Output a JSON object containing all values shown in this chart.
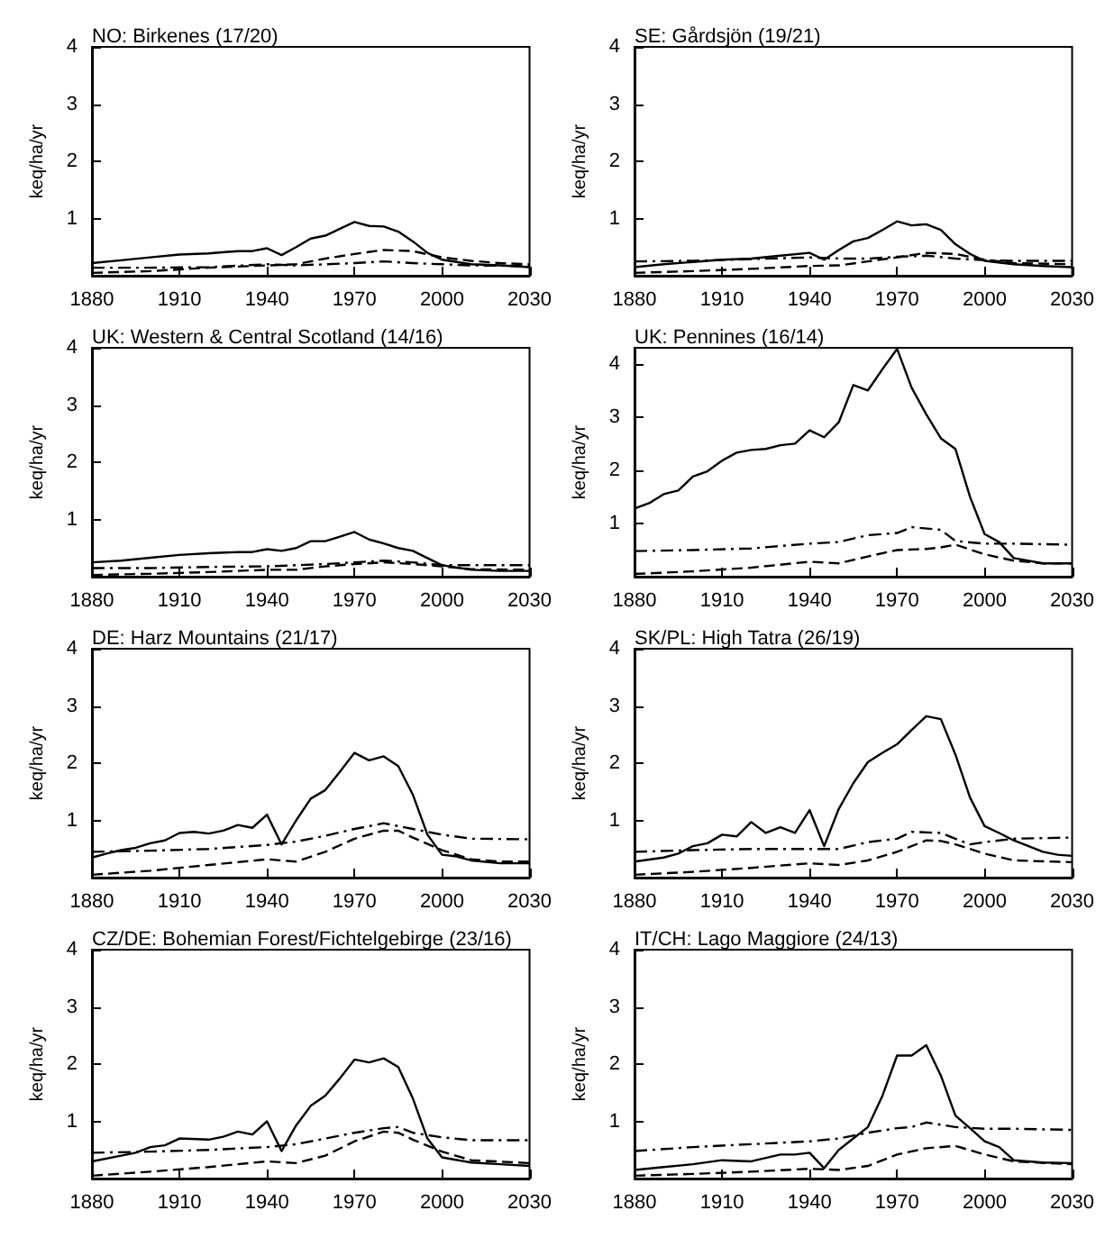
{
  "chart_data": [
    {
      "type": "line",
      "title": "NO: Birkenes (17/20)",
      "ylabel": "keq/ha/yr",
      "xlim": [
        1880,
        2030
      ],
      "xticks": [
        1880,
        1910,
        1940,
        1970,
        2000,
        2030
      ],
      "ylim": [
        0,
        4
      ],
      "yticks": [
        1,
        2,
        3,
        4
      ],
      "series": [
        {
          "color": "#000000",
          "line_style": "solid",
          "x": [
            1880,
            1890,
            1900,
            1910,
            1920,
            1930,
            1935,
            1940,
            1945,
            1950,
            1955,
            1960,
            1965,
            1970,
            1975,
            1980,
            1985,
            1990,
            1995,
            2000,
            2010,
            2020,
            2030
          ],
          "values": [
            0.22,
            0.27,
            0.32,
            0.37,
            0.39,
            0.43,
            0.43,
            0.48,
            0.36,
            0.5,
            0.65,
            0.7,
            0.82,
            0.94,
            0.87,
            0.86,
            0.77,
            0.6,
            0.4,
            0.28,
            0.2,
            0.18,
            0.15
          ]
        },
        {
          "color": "#000000",
          "line_style": "dashed",
          "x": [
            1880,
            1900,
            1920,
            1940,
            1950,
            1960,
            1970,
            1980,
            1990,
            2000,
            2010,
            2020,
            2030
          ],
          "values": [
            0.05,
            0.08,
            0.14,
            0.18,
            0.2,
            0.3,
            0.38,
            0.45,
            0.43,
            0.32,
            0.26,
            0.22,
            0.2
          ]
        },
        {
          "color": "#000000",
          "line_style": "dashdot",
          "x": [
            1880,
            1900,
            1920,
            1940,
            1950,
            1960,
            1970,
            1980,
            1990,
            2000,
            2010,
            2030
          ],
          "values": [
            0.14,
            0.14,
            0.15,
            0.2,
            0.18,
            0.2,
            0.22,
            0.25,
            0.22,
            0.2,
            0.18,
            0.17
          ]
        }
      ]
    },
    {
      "type": "line",
      "title": "SE: Gårdsjön (19/21)",
      "ylabel": "keq/ha/yr",
      "xlim": [
        1880,
        2030
      ],
      "xticks": [
        1880,
        1910,
        1940,
        1970,
        2000,
        2030
      ],
      "ylim": [
        0,
        4
      ],
      "yticks": [
        1,
        2,
        3,
        4
      ],
      "series": [
        {
          "color": "#000000",
          "line_style": "solid",
          "x": [
            1880,
            1890,
            1900,
            1910,
            1920,
            1930,
            1940,
            1945,
            1950,
            1955,
            1960,
            1965,
            1970,
            1975,
            1980,
            1985,
            1990,
            1995,
            2000,
            2010,
            2020,
            2030
          ],
          "values": [
            0.15,
            0.2,
            0.24,
            0.28,
            0.3,
            0.35,
            0.4,
            0.28,
            0.45,
            0.6,
            0.66,
            0.8,
            0.95,
            0.88,
            0.9,
            0.8,
            0.55,
            0.38,
            0.26,
            0.2,
            0.17,
            0.15
          ]
        },
        {
          "color": "#000000",
          "line_style": "dashed",
          "x": [
            1880,
            1900,
            1920,
            1940,
            1950,
            1960,
            1970,
            1980,
            1990,
            2000,
            2010,
            2030
          ],
          "values": [
            0.05,
            0.08,
            0.12,
            0.17,
            0.18,
            0.25,
            0.32,
            0.4,
            0.38,
            0.28,
            0.22,
            0.2
          ]
        },
        {
          "color": "#000000",
          "line_style": "dashdot",
          "x": [
            1880,
            1900,
            1920,
            1940,
            1950,
            1960,
            1970,
            1980,
            1990,
            2000,
            2010,
            2030
          ],
          "values": [
            0.25,
            0.26,
            0.29,
            0.32,
            0.3,
            0.3,
            0.33,
            0.35,
            0.3,
            0.27,
            0.26,
            0.26
          ]
        }
      ]
    },
    {
      "type": "line",
      "title": "UK: Western & Central Scotland (14/16)",
      "ylabel": "keq/ha/yr",
      "xlim": [
        1880,
        2030
      ],
      "xticks": [
        1880,
        1910,
        1940,
        1970,
        2000,
        2030
      ],
      "ylim": [
        0,
        4
      ],
      "yticks": [
        1,
        2,
        3,
        4
      ],
      "series": [
        {
          "color": "#000000",
          "line_style": "solid",
          "x": [
            1880,
            1890,
            1900,
            1910,
            1920,
            1930,
            1935,
            1940,
            1945,
            1950,
            1955,
            1960,
            1965,
            1970,
            1975,
            1980,
            1985,
            1990,
            2000,
            2010,
            2020,
            2030
          ],
          "values": [
            0.25,
            0.28,
            0.33,
            0.38,
            0.41,
            0.43,
            0.43,
            0.48,
            0.45,
            0.5,
            0.62,
            0.62,
            0.7,
            0.78,
            0.65,
            0.58,
            0.5,
            0.45,
            0.2,
            0.12,
            0.1,
            0.1
          ]
        },
        {
          "color": "#000000",
          "line_style": "dashed",
          "x": [
            1880,
            1900,
            1920,
            1940,
            1950,
            1960,
            1970,
            1980,
            1990,
            2000,
            2010,
            2030
          ],
          "values": [
            0.03,
            0.05,
            0.08,
            0.12,
            0.12,
            0.18,
            0.22,
            0.25,
            0.22,
            0.18,
            0.13,
            0.12
          ]
        },
        {
          "color": "#000000",
          "line_style": "dashdot",
          "x": [
            1880,
            1900,
            1920,
            1940,
            1960,
            1970,
            1980,
            1990,
            2000,
            2010,
            2030
          ],
          "values": [
            0.15,
            0.15,
            0.17,
            0.18,
            0.22,
            0.25,
            0.28,
            0.25,
            0.2,
            0.2,
            0.2
          ]
        }
      ]
    },
    {
      "type": "line",
      "title": "UK: Pennines (16/14)",
      "ylabel": "keq/ha/yr",
      "xlim": [
        1880,
        2030
      ],
      "xticks": [
        1880,
        1910,
        1940,
        1970,
        2000,
        2030
      ],
      "ylim": [
        0,
        4.3
      ],
      "yticks": [
        1,
        2,
        3,
        4
      ],
      "series": [
        {
          "color": "#000000",
          "line_style": "solid",
          "x": [
            1880,
            1885,
            1890,
            1895,
            1900,
            1905,
            1910,
            1915,
            1920,
            1925,
            1930,
            1935,
            1940,
            1945,
            1950,
            1955,
            1960,
            1965,
            1970,
            1975,
            1980,
            1985,
            1990,
            1995,
            2000,
            2005,
            2010,
            2020,
            2030
          ],
          "values": [
            1.28,
            1.38,
            1.55,
            1.62,
            1.88,
            1.98,
            2.18,
            2.33,
            2.38,
            2.4,
            2.47,
            2.5,
            2.75,
            2.62,
            2.9,
            3.6,
            3.5,
            3.9,
            4.28,
            3.55,
            3.05,
            2.6,
            2.4,
            1.5,
            0.8,
            0.65,
            0.35,
            0.25,
            0.25
          ]
        },
        {
          "color": "#000000",
          "line_style": "dashed",
          "x": [
            1880,
            1900,
            1920,
            1940,
            1950,
            1960,
            1970,
            1980,
            1985,
            1990,
            2000,
            2010,
            2020,
            2030
          ],
          "values": [
            0.05,
            0.1,
            0.17,
            0.28,
            0.25,
            0.38,
            0.5,
            0.52,
            0.55,
            0.6,
            0.42,
            0.3,
            0.25,
            0.25
          ]
        },
        {
          "color": "#000000",
          "line_style": "dashdot",
          "x": [
            1880,
            1900,
            1920,
            1940,
            1950,
            1960,
            1970,
            1975,
            1985,
            1990,
            2000,
            2010,
            2030
          ],
          "values": [
            0.48,
            0.5,
            0.53,
            0.62,
            0.65,
            0.78,
            0.82,
            0.93,
            0.88,
            0.67,
            0.62,
            0.62,
            0.6
          ]
        }
      ]
    },
    {
      "type": "line",
      "title": "DE: Harz Mountains (21/17)",
      "ylabel": "keq/ha/yr",
      "xlim": [
        1880,
        2030
      ],
      "xticks": [
        1880,
        1910,
        1940,
        1970,
        2000,
        2030
      ],
      "ylim": [
        0,
        4
      ],
      "yticks": [
        1,
        2,
        3,
        4
      ],
      "series": [
        {
          "color": "#000000",
          "line_style": "solid",
          "x": [
            1880,
            1885,
            1890,
            1895,
            1900,
            1905,
            1910,
            1915,
            1920,
            1925,
            1930,
            1935,
            1940,
            1945,
            1950,
            1955,
            1960,
            1965,
            1970,
            1975,
            1980,
            1985,
            1990,
            1995,
            2000,
            2005,
            2010,
            2020,
            2030
          ],
          "values": [
            0.35,
            0.42,
            0.48,
            0.52,
            0.6,
            0.65,
            0.78,
            0.8,
            0.77,
            0.82,
            0.92,
            0.87,
            1.1,
            0.58,
            1.0,
            1.38,
            1.53,
            1.85,
            2.18,
            2.05,
            2.12,
            1.95,
            1.45,
            0.75,
            0.4,
            0.37,
            0.3,
            0.25,
            0.25
          ]
        },
        {
          "color": "#000000",
          "line_style": "dashed",
          "x": [
            1880,
            1900,
            1920,
            1940,
            1950,
            1960,
            1970,
            1980,
            1985,
            1990,
            2000,
            2010,
            2020,
            2030
          ],
          "values": [
            0.05,
            0.12,
            0.22,
            0.32,
            0.28,
            0.45,
            0.68,
            0.82,
            0.82,
            0.7,
            0.48,
            0.32,
            0.28,
            0.28
          ]
        },
        {
          "color": "#000000",
          "line_style": "dashdot",
          "x": [
            1880,
            1900,
            1920,
            1940,
            1950,
            1960,
            1970,
            1980,
            1990,
            2000,
            2010,
            2030
          ],
          "values": [
            0.45,
            0.47,
            0.5,
            0.57,
            0.63,
            0.73,
            0.85,
            0.95,
            0.85,
            0.75,
            0.68,
            0.67
          ]
        }
      ]
    },
    {
      "type": "line",
      "title": "SK/PL: High Tatra (26/19)",
      "ylabel": "keq/ha/yr",
      "xlim": [
        1880,
        2030
      ],
      "xticks": [
        1880,
        1910,
        1940,
        1970,
        2000,
        2030
      ],
      "ylim": [
        0,
        4
      ],
      "yticks": [
        1,
        2,
        3,
        4
      ],
      "series": [
        {
          "color": "#000000",
          "line_style": "solid",
          "x": [
            1880,
            1890,
            1895,
            1900,
            1905,
            1910,
            1915,
            1920,
            1925,
            1930,
            1935,
            1940,
            1945,
            1950,
            1955,
            1960,
            1965,
            1970,
            1975,
            1980,
            1985,
            1990,
            1995,
            2000,
            2005,
            2010,
            2020,
            2025,
            2030
          ],
          "values": [
            0.28,
            0.35,
            0.42,
            0.55,
            0.6,
            0.75,
            0.72,
            0.97,
            0.78,
            0.88,
            0.78,
            1.18,
            0.55,
            1.2,
            1.65,
            2.02,
            2.18,
            2.33,
            2.58,
            2.82,
            2.77,
            2.15,
            1.4,
            0.9,
            0.78,
            0.65,
            0.45,
            0.4,
            0.38
          ]
        },
        {
          "color": "#000000",
          "line_style": "dashed",
          "x": [
            1880,
            1900,
            1920,
            1940,
            1950,
            1960,
            1970,
            1980,
            1985,
            1990,
            2000,
            2010,
            2030
          ],
          "values": [
            0.05,
            0.1,
            0.17,
            0.25,
            0.22,
            0.3,
            0.45,
            0.65,
            0.64,
            0.58,
            0.42,
            0.3,
            0.27
          ]
        },
        {
          "color": "#000000",
          "line_style": "dashdot",
          "x": [
            1880,
            1900,
            1920,
            1940,
            1950,
            1960,
            1970,
            1975,
            1985,
            1995,
            2000,
            2010,
            2030
          ],
          "values": [
            0.45,
            0.48,
            0.5,
            0.5,
            0.5,
            0.62,
            0.68,
            0.8,
            0.78,
            0.58,
            0.62,
            0.68,
            0.7
          ]
        }
      ]
    },
    {
      "type": "line",
      "title": "CZ/DE: Bohemian Forest/Fichtelgebirge (23/16)",
      "ylabel": "keq/ha/yr",
      "xlim": [
        1880,
        2030
      ],
      "xticks": [
        1880,
        1910,
        1940,
        1970,
        2000,
        2030
      ],
      "ylim": [
        0,
        4
      ],
      "yticks": [
        1,
        2,
        3,
        4
      ],
      "series": [
        {
          "color": "#000000",
          "line_style": "solid",
          "x": [
            1880,
            1890,
            1895,
            1900,
            1905,
            1910,
            1920,
            1925,
            1930,
            1935,
            1940,
            1945,
            1950,
            1955,
            1960,
            1965,
            1970,
            1975,
            1980,
            1985,
            1990,
            1995,
            2000,
            2010,
            2020,
            2030
          ],
          "values": [
            0.3,
            0.4,
            0.45,
            0.55,
            0.58,
            0.7,
            0.68,
            0.73,
            0.82,
            0.77,
            1.0,
            0.48,
            0.93,
            1.27,
            1.45,
            1.75,
            2.08,
            2.03,
            2.1,
            1.95,
            1.4,
            0.7,
            0.37,
            0.28,
            0.25,
            0.22
          ]
        },
        {
          "color": "#000000",
          "line_style": "dashed",
          "x": [
            1880,
            1900,
            1920,
            1940,
            1950,
            1960,
            1970,
            1980,
            1985,
            1990,
            2000,
            2010,
            2030
          ],
          "values": [
            0.05,
            0.12,
            0.2,
            0.3,
            0.27,
            0.4,
            0.65,
            0.82,
            0.8,
            0.68,
            0.47,
            0.32,
            0.27
          ]
        },
        {
          "color": "#000000",
          "line_style": "dashdot",
          "x": [
            1880,
            1900,
            1920,
            1940,
            1950,
            1960,
            1970,
            1980,
            1985,
            1990,
            2000,
            2010,
            2030
          ],
          "values": [
            0.45,
            0.47,
            0.5,
            0.55,
            0.6,
            0.7,
            0.8,
            0.88,
            0.9,
            0.8,
            0.72,
            0.67,
            0.67
          ]
        }
      ]
    },
    {
      "type": "line",
      "title": "IT/CH: Lago Maggiore (24/13)",
      "ylabel": "keq/ha/yr",
      "xlim": [
        1880,
        2030
      ],
      "xticks": [
        1880,
        1910,
        1940,
        1970,
        2000,
        2030
      ],
      "ylim": [
        0,
        4
      ],
      "yticks": [
        1,
        2,
        3,
        4
      ],
      "series": [
        {
          "color": "#000000",
          "line_style": "solid",
          "x": [
            1880,
            1890,
            1900,
            1910,
            1920,
            1930,
            1935,
            1940,
            1945,
            1950,
            1955,
            1960,
            1965,
            1970,
            1975,
            1980,
            1985,
            1990,
            1995,
            2000,
            2005,
            2010,
            2020,
            2030
          ],
          "values": [
            0.15,
            0.2,
            0.25,
            0.32,
            0.3,
            0.42,
            0.42,
            0.45,
            0.18,
            0.5,
            0.7,
            0.9,
            1.45,
            2.15,
            2.15,
            2.33,
            1.8,
            1.1,
            0.88,
            0.65,
            0.55,
            0.32,
            0.28,
            0.27
          ]
        },
        {
          "color": "#000000",
          "line_style": "dashed",
          "x": [
            1880,
            1900,
            1920,
            1940,
            1950,
            1960,
            1970,
            1980,
            1990,
            2000,
            2010,
            2030
          ],
          "values": [
            0.05,
            0.08,
            0.12,
            0.17,
            0.15,
            0.22,
            0.42,
            0.53,
            0.57,
            0.42,
            0.3,
            0.25
          ]
        },
        {
          "color": "#000000",
          "line_style": "dashdot",
          "x": [
            1880,
            1900,
            1920,
            1940,
            1950,
            1960,
            1970,
            1975,
            1980,
            1990,
            2000,
            2010,
            2030
          ],
          "values": [
            0.48,
            0.55,
            0.6,
            0.65,
            0.7,
            0.8,
            0.88,
            0.9,
            0.98,
            0.9,
            0.87,
            0.87,
            0.85
          ]
        }
      ]
    }
  ]
}
